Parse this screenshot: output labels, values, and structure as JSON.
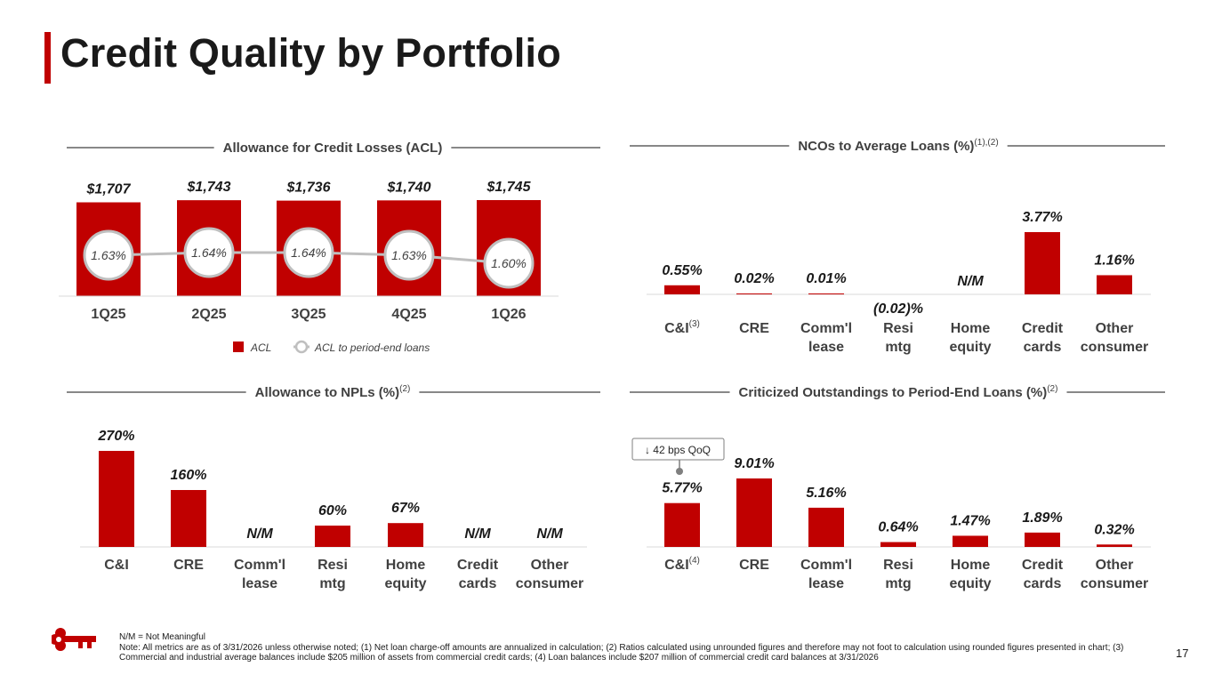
{
  "page": {
    "title": "Credit Quality by Portfolio",
    "page_number": "17",
    "footnote_nm": "N/M = Not Meaningful",
    "footnote_note": "Note: All metrics are as of 3/31/2026 unless otherwise noted; (1) Net loan charge-off amounts are annualized in calculation; (2) Ratios calculated using unrounded figures and therefore may not foot to calculation using rounded figures presented in chart; (3) Commercial and industrial average balances include $205 million of assets from commercial credit cards; (4) Loan balances include $207 million of commercial credit card balances at 3/31/2026",
    "accent_color": "#c00000"
  },
  "chart_data": [
    {
      "id": "acl",
      "type": "bar",
      "title": "Allowance for Credit Losses (ACL)",
      "categories": [
        "1Q25",
        "2Q25",
        "3Q25",
        "4Q25",
        "1Q26"
      ],
      "series": [
        {
          "name": "ACL",
          "values": [
            1707,
            1743,
            1736,
            1740,
            1745
          ],
          "labels": [
            "$1,707",
            "$1,743",
            "$1,736",
            "$1,740",
            "$1,745"
          ],
          "color": "#c00000"
        },
        {
          "name": "ACL to period-end loans",
          "type": "line",
          "values": [
            1.63,
            1.64,
            1.64,
            1.63,
            1.6
          ],
          "labels": [
            "1.63%",
            "1.64%",
            "1.64%",
            "1.63%",
            "1.60%"
          ],
          "color": "#bfbfbf"
        }
      ],
      "legend": [
        "ACL",
        "ACL to period-end loans"
      ],
      "ylim": [
        0,
        1745
      ]
    },
    {
      "id": "nco",
      "type": "bar",
      "title": "NCOs to Average Loans (%)",
      "title_sup": "(1),(2)",
      "categories": [
        "C&I",
        "CRE",
        "Comm'l lease",
        "Resi mtg",
        "Home equity",
        "Credit cards",
        "Other consumer"
      ],
      "category_lines": [
        [
          "C&I"
        ],
        [
          "CRE"
        ],
        [
          "Comm'l",
          "lease"
        ],
        [
          "Resi",
          "mtg"
        ],
        [
          "Home",
          "equity"
        ],
        [
          "Credit",
          "cards"
        ],
        [
          "Other",
          "consumer"
        ]
      ],
      "category_sup": [
        "(3)",
        "",
        "",
        "",
        "",
        "",
        ""
      ],
      "values": [
        0.55,
        0.02,
        0.01,
        -0.02,
        null,
        3.77,
        1.16
      ],
      "labels": [
        "0.55%",
        "0.02%",
        "0.01%",
        "(0.02)%",
        "N/M",
        "3.77%",
        "1.16%"
      ],
      "ylim": [
        0,
        3.77
      ]
    },
    {
      "id": "npl",
      "type": "bar",
      "title": "Allowance to NPLs (%)",
      "title_sup": "(2)",
      "categories": [
        "C&I",
        "CRE",
        "Comm'l lease",
        "Resi mtg",
        "Home equity",
        "Credit cards",
        "Other consumer"
      ],
      "category_lines": [
        [
          "C&I"
        ],
        [
          "CRE"
        ],
        [
          "Comm'l",
          "lease"
        ],
        [
          "Resi",
          "mtg"
        ],
        [
          "Home",
          "equity"
        ],
        [
          "Credit",
          "cards"
        ],
        [
          "Other",
          "consumer"
        ]
      ],
      "category_sup": [
        "",
        "",
        "",
        "",
        "",
        "",
        ""
      ],
      "values": [
        270,
        160,
        null,
        60,
        67,
        null,
        null
      ],
      "labels": [
        "270%",
        "160%",
        "N/M",
        "60%",
        "67%",
        "N/M",
        "N/M"
      ],
      "ylim": [
        0,
        270
      ]
    },
    {
      "id": "crit",
      "type": "bar",
      "title": "Criticized Outstandings to Period-End Loans (%)",
      "title_sup": "(2)",
      "categories": [
        "C&I",
        "CRE",
        "Comm'l lease",
        "Resi mtg",
        "Home equity",
        "Credit cards",
        "Other consumer"
      ],
      "category_lines": [
        [
          "C&I"
        ],
        [
          "CRE"
        ],
        [
          "Comm'l",
          "lease"
        ],
        [
          "Resi",
          "mtg"
        ],
        [
          "Home",
          "equity"
        ],
        [
          "Credit",
          "cards"
        ],
        [
          "Other",
          "consumer"
        ]
      ],
      "category_sup": [
        "(4)",
        "",
        "",
        "",
        "",
        "",
        ""
      ],
      "values": [
        5.77,
        9.01,
        5.16,
        0.64,
        1.47,
        1.89,
        0.32
      ],
      "labels": [
        "5.77%",
        "9.01%",
        "5.16%",
        "0.64%",
        "1.47%",
        "1.89%",
        "0.32%"
      ],
      "ylim": [
        0,
        9.01
      ],
      "annotation": {
        "text": "↓ 42 bps QoQ",
        "category": "C&I"
      }
    }
  ]
}
